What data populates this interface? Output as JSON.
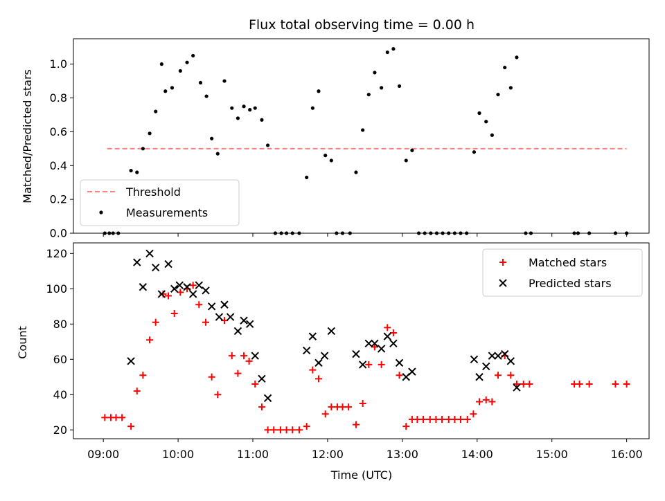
{
  "chart_data": [
    {
      "type": "scatter",
      "title": "Flux total observing time = 0.00 h",
      "ylabel": "Matched/Predicted stars",
      "xlabel": "",
      "xlim_hours": [
        8.6,
        16.3
      ],
      "ylim": [
        0,
        1.15
      ],
      "yticks": [
        0.0,
        0.2,
        0.4,
        0.6,
        0.8,
        1.0
      ],
      "ytick_labels": [
        "0.0",
        "0.2",
        "0.4",
        "0.6",
        "0.8",
        "1.0"
      ],
      "threshold": {
        "name": "Threshold",
        "y": 0.5,
        "x_range": [
          9.05,
          16.0
        ],
        "color": "#ff7f7f"
      },
      "legend": {
        "position": "lower-left",
        "entries": [
          "Threshold",
          "Measurements"
        ]
      },
      "series": [
        {
          "name": "Measurements",
          "color": "#000000",
          "marker": "dot",
          "points": [
            [
              9.02,
              0
            ],
            [
              9.08,
              0
            ],
            [
              9.13,
              0
            ],
            [
              9.2,
              0
            ],
            [
              9.37,
              0.37
            ],
            [
              9.45,
              0.36
            ],
            [
              9.53,
              0.5
            ],
            [
              9.62,
              0.59
            ],
            [
              9.7,
              0.72
            ],
            [
              9.78,
              1.0
            ],
            [
              9.83,
              0.84
            ],
            [
              9.92,
              0.86
            ],
            [
              10.03,
              0.96
            ],
            [
              10.12,
              1.01
            ],
            [
              10.2,
              1.05
            ],
            [
              10.3,
              0.89
            ],
            [
              10.38,
              0.81
            ],
            [
              10.45,
              0.56
            ],
            [
              10.53,
              0.47
            ],
            [
              10.62,
              0.9
            ],
            [
              10.72,
              0.74
            ],
            [
              10.8,
              0.68
            ],
            [
              10.88,
              0.75
            ],
            [
              10.96,
              0.73
            ],
            [
              11.03,
              0.74
            ],
            [
              11.12,
              0.67
            ],
            [
              11.2,
              0.52
            ],
            [
              11.3,
              0
            ],
            [
              11.38,
              0
            ],
            [
              11.45,
              0
            ],
            [
              11.53,
              0
            ],
            [
              11.62,
              0
            ],
            [
              11.72,
              0.33
            ],
            [
              11.8,
              0.74
            ],
            [
              11.88,
              0.84
            ],
            [
              11.97,
              0.46
            ],
            [
              12.05,
              0.43
            ],
            [
              12.12,
              0
            ],
            [
              12.2,
              0
            ],
            [
              12.3,
              0
            ],
            [
              12.38,
              0.36
            ],
            [
              12.47,
              0.61
            ],
            [
              12.55,
              0.82
            ],
            [
              12.63,
              0.95
            ],
            [
              12.72,
              0.86
            ],
            [
              12.8,
              1.07
            ],
            [
              12.88,
              1.09
            ],
            [
              12.96,
              0.87
            ],
            [
              13.05,
              0.43
            ],
            [
              13.13,
              0.49
            ],
            [
              13.22,
              0
            ],
            [
              13.3,
              0
            ],
            [
              13.38,
              0
            ],
            [
              13.46,
              0
            ],
            [
              13.54,
              0
            ],
            [
              13.62,
              0
            ],
            [
              13.7,
              0
            ],
            [
              13.78,
              0
            ],
            [
              13.86,
              0
            ],
            [
              13.96,
              0.48
            ],
            [
              14.03,
              0.71
            ],
            [
              14.12,
              0.66
            ],
            [
              14.2,
              0.58
            ],
            [
              14.28,
              0.82
            ],
            [
              14.37,
              0.98
            ],
            [
              14.45,
              0.86
            ],
            [
              14.53,
              1.04
            ],
            [
              14.65,
              0
            ],
            [
              14.72,
              0
            ],
            [
              15.3,
              0
            ],
            [
              15.35,
              0
            ],
            [
              15.5,
              0
            ],
            [
              15.85,
              0
            ],
            [
              16.0,
              0
            ]
          ]
        }
      ]
    },
    {
      "type": "scatter",
      "title": "",
      "xlabel": "Time (UTC)",
      "ylabel": "Count",
      "xlim_hours": [
        8.6,
        16.3
      ],
      "ylim": [
        15,
        126
      ],
      "yticks": [
        20,
        40,
        60,
        80,
        100,
        120
      ],
      "ytick_labels": [
        "20",
        "40",
        "60",
        "80",
        "100",
        "120"
      ],
      "xticks_hours": [
        9,
        10,
        11,
        12,
        13,
        14,
        15,
        16
      ],
      "xtick_labels": [
        "09:00",
        "10:00",
        "11:00",
        "12:00",
        "13:00",
        "14:00",
        "15:00",
        "16:00"
      ],
      "legend": {
        "position": "upper-right",
        "entries": [
          "Matched stars",
          "Predicted stars"
        ]
      },
      "series": [
        {
          "name": "Matched stars",
          "color": "#ff0000",
          "marker": "plus",
          "points": [
            [
              9.02,
              27
            ],
            [
              9.1,
              27
            ],
            [
              9.17,
              27
            ],
            [
              9.25,
              27
            ],
            [
              9.37,
              22
            ],
            [
              9.45,
              42
            ],
            [
              9.53,
              51
            ],
            [
              9.62,
              71
            ],
            [
              9.7,
              81
            ],
            [
              9.8,
              97
            ],
            [
              9.87,
              96
            ],
            [
              9.95,
              86
            ],
            [
              10.03,
              98
            ],
            [
              10.12,
              100
            ],
            [
              10.2,
              102
            ],
            [
              10.28,
              91
            ],
            [
              10.37,
              81
            ],
            [
              10.45,
              50
            ],
            [
              10.53,
              40
            ],
            [
              10.62,
              82
            ],
            [
              10.72,
              62
            ],
            [
              10.8,
              52
            ],
            [
              10.88,
              62
            ],
            [
              10.95,
              59
            ],
            [
              11.03,
              46
            ],
            [
              11.12,
              33
            ],
            [
              11.2,
              20
            ],
            [
              11.28,
              20
            ],
            [
              11.37,
              20
            ],
            [
              11.45,
              20
            ],
            [
              11.53,
              20
            ],
            [
              11.62,
              20
            ],
            [
              11.72,
              22
            ],
            [
              11.8,
              54
            ],
            [
              11.88,
              49
            ],
            [
              11.97,
              29
            ],
            [
              12.05,
              33
            ],
            [
              12.13,
              33
            ],
            [
              12.2,
              33
            ],
            [
              12.28,
              33
            ],
            [
              12.38,
              23
            ],
            [
              12.47,
              35
            ],
            [
              12.55,
              57
            ],
            [
              12.63,
              67
            ],
            [
              12.72,
              57
            ],
            [
              12.8,
              78
            ],
            [
              12.88,
              75
            ],
            [
              12.96,
              51
            ],
            [
              13.05,
              22
            ],
            [
              13.13,
              26
            ],
            [
              13.2,
              26
            ],
            [
              13.28,
              26
            ],
            [
              13.37,
              26
            ],
            [
              13.45,
              26
            ],
            [
              13.53,
              26
            ],
            [
              13.62,
              26
            ],
            [
              13.7,
              26
            ],
            [
              13.78,
              26
            ],
            [
              13.87,
              26
            ],
            [
              13.95,
              29
            ],
            [
              14.03,
              36
            ],
            [
              14.12,
              37
            ],
            [
              14.2,
              36
            ],
            [
              14.28,
              51
            ],
            [
              14.37,
              62
            ],
            [
              14.45,
              51
            ],
            [
              14.53,
              46
            ],
            [
              14.62,
              46
            ],
            [
              14.7,
              46
            ],
            [
              15.3,
              46
            ],
            [
              15.37,
              46
            ],
            [
              15.5,
              46
            ],
            [
              15.85,
              46
            ],
            [
              16.0,
              46
            ]
          ]
        },
        {
          "name": "Predicted stars",
          "color": "#000000",
          "marker": "x",
          "points": [
            [
              9.37,
              59
            ],
            [
              9.45,
              115
            ],
            [
              9.53,
              101
            ],
            [
              9.62,
              120
            ],
            [
              9.7,
              112
            ],
            [
              9.78,
              97
            ],
            [
              9.87,
              114
            ],
            [
              9.95,
              100
            ],
            [
              10.02,
              102
            ],
            [
              10.12,
              101
            ],
            [
              10.2,
              97
            ],
            [
              10.28,
              102
            ],
            [
              10.37,
              99
            ],
            [
              10.45,
              90
            ],
            [
              10.55,
              84
            ],
            [
              10.62,
              91
            ],
            [
              10.7,
              84
            ],
            [
              10.8,
              76
            ],
            [
              10.88,
              82
            ],
            [
              10.96,
              80
            ],
            [
              11.03,
              62
            ],
            [
              11.12,
              49
            ],
            [
              11.2,
              38
            ],
            [
              11.72,
              65
            ],
            [
              11.8,
              73
            ],
            [
              11.88,
              58
            ],
            [
              11.96,
              62
            ],
            [
              12.05,
              76
            ],
            [
              12.38,
              63
            ],
            [
              12.47,
              57
            ],
            [
              12.55,
              69
            ],
            [
              12.63,
              69
            ],
            [
              12.72,
              66
            ],
            [
              12.8,
              73
            ],
            [
              12.88,
              69
            ],
            [
              12.96,
              58
            ],
            [
              13.05,
              50
            ],
            [
              13.13,
              53
            ],
            [
              13.96,
              60
            ],
            [
              14.03,
              50
            ],
            [
              14.12,
              56
            ],
            [
              14.2,
              62
            ],
            [
              14.28,
              62
            ],
            [
              14.37,
              63
            ],
            [
              14.45,
              59
            ],
            [
              14.53,
              44
            ]
          ]
        }
      ]
    }
  ]
}
